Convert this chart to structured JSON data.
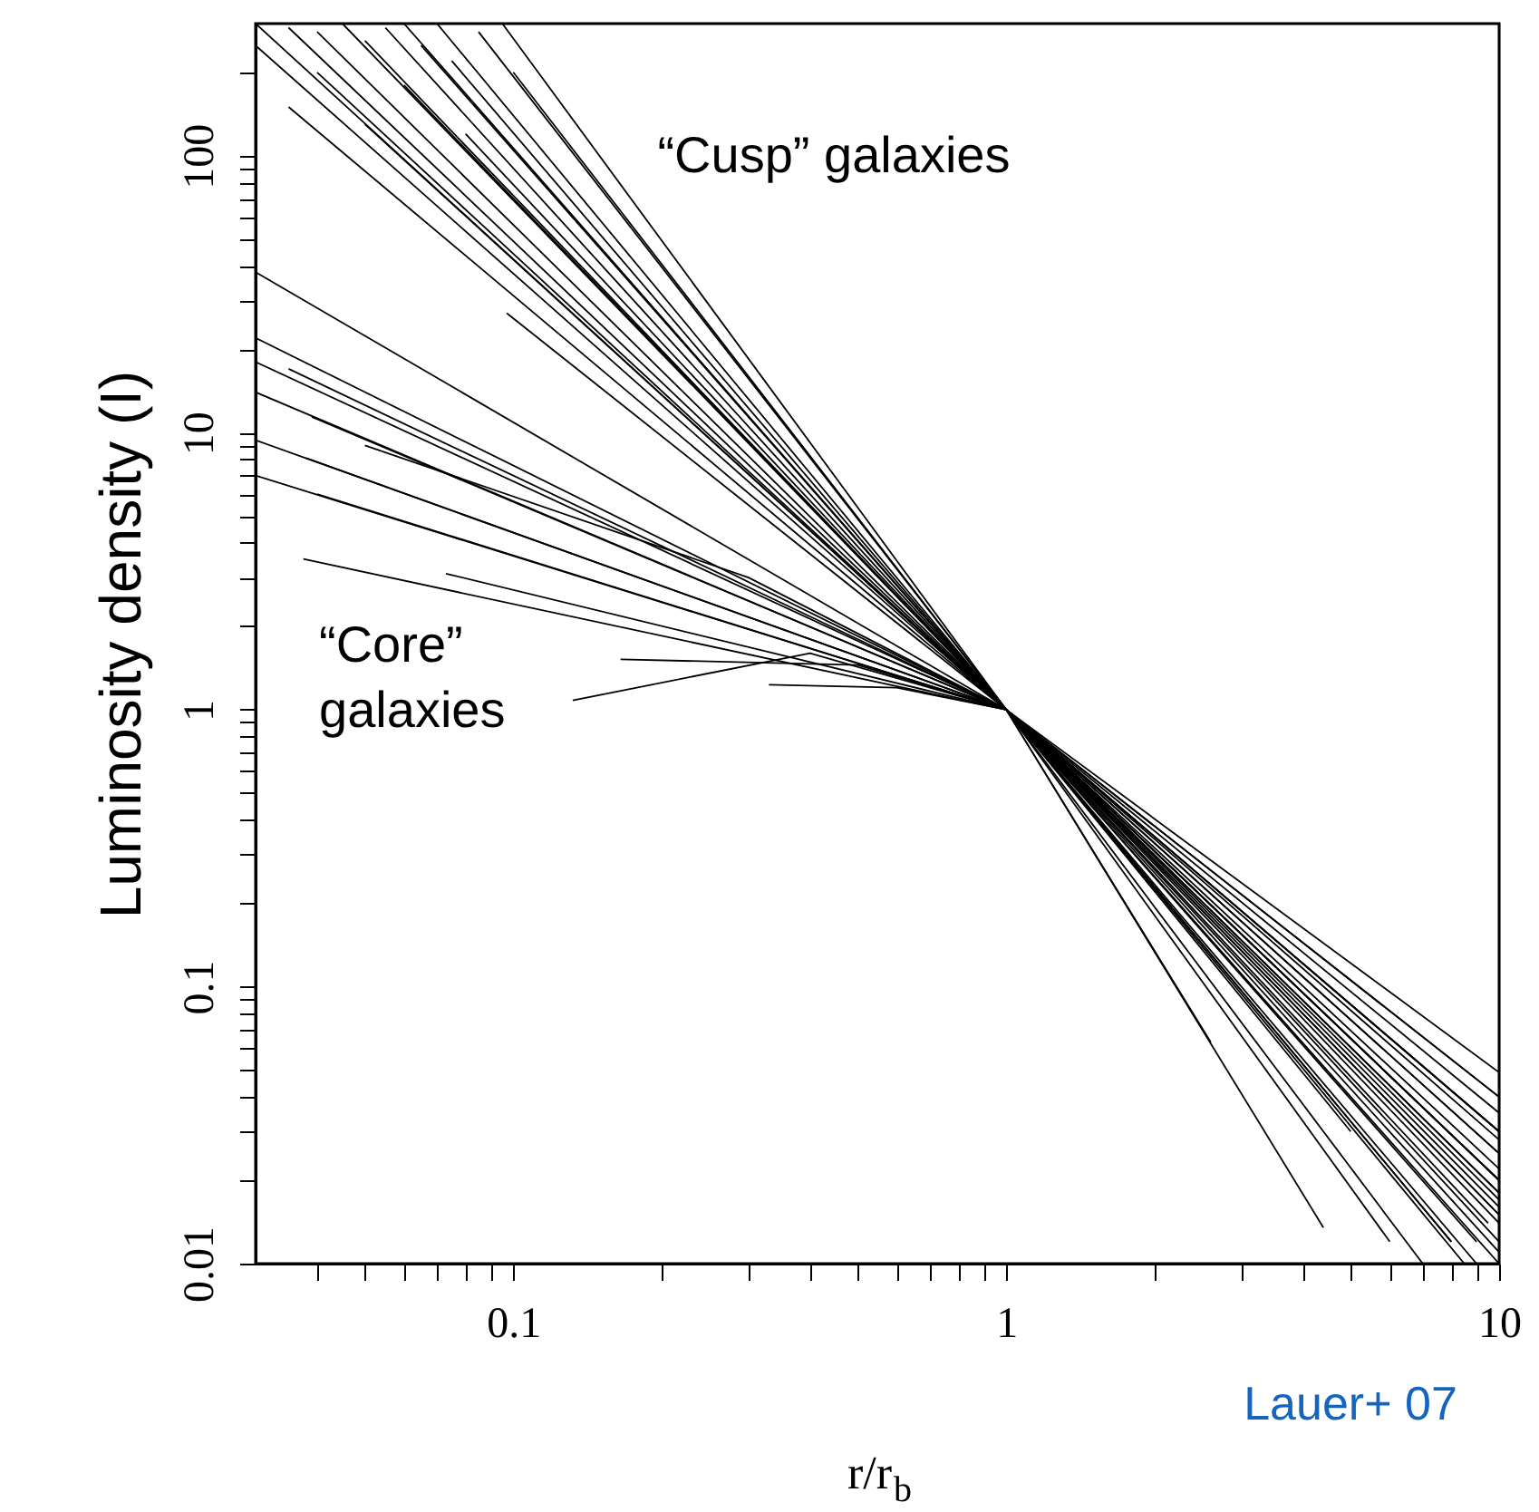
{
  "chart_data": {
    "type": "line",
    "xlabel": "r/r$_{b}$",
    "ylabel": "Luminosity density (I)",
    "log": "xy",
    "grid": false,
    "marker": "none",
    "line_style": "solid",
    "xlim": [
      0.03,
      10
    ],
    "ylim": [
      0.01,
      300
    ],
    "xticks": [
      {
        "value": 0.04,
        "label": null
      },
      {
        "value": 0.05,
        "label": null
      },
      {
        "value": 0.06,
        "label": null
      },
      {
        "value": 0.07,
        "label": null
      },
      {
        "value": 0.08,
        "label": null
      },
      {
        "value": 0.09,
        "label": null
      },
      0.1,
      {
        "value": 0.2,
        "label": null
      },
      {
        "value": 0.3,
        "label": null
      },
      {
        "value": 0.4,
        "label": null
      },
      {
        "value": 0.5,
        "label": null
      },
      {
        "value": 0.6,
        "label": null
      },
      {
        "value": 0.7,
        "label": null
      },
      {
        "value": 0.8,
        "label": null
      },
      {
        "value": 0.9,
        "label": null
      },
      1,
      {
        "value": 2,
        "label": null
      },
      {
        "value": 3,
        "label": null
      },
      {
        "value": 4,
        "label": null
      },
      {
        "value": 5,
        "label": null
      },
      {
        "value": 6,
        "label": null
      },
      {
        "value": 7,
        "label": null
      },
      {
        "value": 8,
        "label": null
      },
      {
        "value": 9,
        "label": null
      },
      10
    ],
    "yticks": [
      0.01,
      {
        "value": 0.02,
        "label": null
      },
      {
        "value": 0.03,
        "label": null
      },
      {
        "value": 0.04,
        "label": null
      },
      {
        "value": 0.05,
        "label": null
      },
      {
        "value": 0.06,
        "label": null
      },
      {
        "value": 0.07,
        "label": null
      },
      {
        "value": 0.08,
        "label": null
      },
      {
        "value": 0.09,
        "label": null
      },
      0.1,
      {
        "value": 0.2,
        "label": null
      },
      {
        "value": 0.3,
        "label": null
      },
      {
        "value": 0.4,
        "label": null
      },
      {
        "value": 0.5,
        "label": null
      },
      {
        "value": 0.6,
        "label": null
      },
      {
        "value": 0.7,
        "label": null
      },
      {
        "value": 0.8,
        "label": null
      },
      {
        "value": 0.9,
        "label": null
      },
      1,
      {
        "value": 2,
        "label": null
      },
      {
        "value": 3,
        "label": null
      },
      {
        "value": 4,
        "label": null
      },
      {
        "value": 5,
        "label": null
      },
      {
        "value": 6,
        "label": null
      },
      {
        "value": 7,
        "label": null
      },
      {
        "value": 8,
        "label": null
      },
      {
        "value": 9,
        "label": null
      },
      10,
      {
        "value": 20,
        "label": null
      },
      {
        "value": 30,
        "label": null
      },
      {
        "value": 40,
        "label": null
      },
      {
        "value": 50,
        "label": null
      },
      {
        "value": 60,
        "label": null
      },
      {
        "value": 70,
        "label": null
      },
      {
        "value": 80,
        "label": null
      },
      {
        "value": 90,
        "label": null
      },
      100,
      {
        "value": 200,
        "label": null
      }
    ],
    "annotations": [
      "“Cusp” galaxies",
      "“Core”\ngalaxies",
      "Lauer+ 07"
    ],
    "series": [
      {
        "color": "#000000",
        "x": [
          0.03,
          1,
          10
        ],
        "values": [
          300,
          1,
          0.012
        ]
      },
      {
        "color": "#000000",
        "x": [
          0.035,
          1,
          8.5
        ],
        "values": [
          290,
          1,
          0.01
        ]
      },
      {
        "color": "#000000",
        "x": [
          0.04,
          1,
          10
        ],
        "values": [
          280,
          1,
          0.02
        ]
      },
      {
        "color": "#000000",
        "x": [
          0.045,
          1,
          10
        ],
        "values": [
          300,
          1,
          0.015
        ]
      },
      {
        "color": "#000000",
        "x": [
          0.05,
          1,
          7
        ],
        "values": [
          260,
          1,
          0.01
        ]
      },
      {
        "color": "#000000",
        "x": [
          0.055,
          1,
          10
        ],
        "values": [
          290,
          1,
          0.025
        ]
      },
      {
        "color": "#000000",
        "x": [
          0.06,
          1,
          9
        ],
        "values": [
          300,
          1,
          0.01
        ]
      },
      {
        "color": "#000000",
        "x": [
          0.065,
          1,
          10
        ],
        "values": [
          250,
          1,
          0.018
        ]
      },
      {
        "color": "#000000",
        "x": [
          0.07,
          1,
          6
        ],
        "values": [
          300,
          1,
          0.012
        ]
      },
      {
        "color": "#000000",
        "x": [
          0.075,
          1,
          10
        ],
        "values": [
          220,
          1,
          0.03
        ]
      },
      {
        "color": "#000000",
        "x": [
          0.085,
          1,
          5
        ],
        "values": [
          280,
          1,
          0.03
        ]
      },
      {
        "color": "#000000",
        "x": [
          0.095,
          1,
          10
        ],
        "values": [
          300,
          1,
          0.011
        ]
      },
      {
        "color": "#000000",
        "x": [
          0.035,
          1,
          10
        ],
        "values": [
          150,
          1,
          0.02
        ]
      },
      {
        "color": "#000000",
        "x": [
          0.05,
          1,
          10
        ],
        "values": [
          130,
          1,
          0.04
        ]
      },
      {
        "color": "#000000",
        "x": [
          0.08,
          1,
          9.5
        ],
        "values": [
          120,
          1,
          0.014
        ]
      },
      {
        "color": "#000000",
        "x": [
          0.1,
          1,
          8
        ],
        "values": [
          200,
          1,
          0.012
        ]
      },
      {
        "color": "#000000",
        "x": [
          0.097,
          1,
          4.4
        ],
        "values": [
          27,
          1,
          0.0135
        ]
      },
      {
        "color": "#000000",
        "x": [
          0.04,
          1,
          2.6
        ],
        "values": [
          200,
          1,
          0.063
        ]
      },
      {
        "color": "#000000",
        "x": [
          0.06,
          1,
          10
        ],
        "values": [
          180,
          1,
          0.016
        ]
      },
      {
        "color": "#000000",
        "x": [
          0.03,
          1,
          10
        ],
        "values": [
          250,
          1,
          0.01
        ]
      },
      {
        "color": "#000000",
        "x": [
          0.03,
          1,
          10
        ],
        "values": [
          38,
          1,
          0.049
        ]
      },
      {
        "color": "#000000",
        "x": [
          0.03,
          1,
          10
        ],
        "values": [
          22,
          1,
          0.025
        ]
      },
      {
        "color": "#000000",
        "x": [
          0.03,
          1,
          10
        ],
        "values": [
          18,
          1,
          0.02
        ]
      },
      {
        "color": "#000000",
        "x": [
          0.035,
          1,
          10
        ],
        "values": [
          17,
          1,
          0.03
        ]
      },
      {
        "color": "#000000",
        "x": [
          0.03,
          1,
          10
        ],
        "values": [
          14,
          1,
          0.017
        ]
      },
      {
        "color": "#000000",
        "x": [
          0.03,
          1,
          10
        ],
        "values": [
          9.4,
          1,
          0.022
        ]
      },
      {
        "color": "#000000",
        "x": [
          0.03,
          1,
          9
        ],
        "values": [
          7,
          1,
          0.012
        ]
      },
      {
        "color": "#000000",
        "x": [
          0.038,
          1,
          10
        ],
        "values": [
          8.1,
          1,
          0.035
        ]
      },
      {
        "color": "#000000",
        "x": [
          0.039,
          1,
          10
        ],
        "values": [
          11.4,
          1,
          0.028
        ]
      },
      {
        "color": "#000000",
        "x": [
          0.0375,
          1,
          10
        ],
        "values": [
          3.5,
          1,
          0.04
        ]
      },
      {
        "color": "#000000",
        "x": [
          0.073,
          1,
          10
        ],
        "values": [
          3.1,
          1,
          0.018
        ]
      },
      {
        "color": "#000000",
        "x": [
          0.165,
          0.5,
          1,
          10
        ],
        "values": [
          1.52,
          1.45,
          1,
          0.02
        ]
      },
      {
        "color": "#000000",
        "x": [
          0.132,
          0.4,
          1,
          8
        ],
        "values": [
          1.08,
          1.6,
          1,
          0.012
        ]
      },
      {
        "color": "#000000",
        "x": [
          0.33,
          0.6,
          1,
          10
        ],
        "values": [
          1.23,
          1.2,
          1,
          0.015
        ]
      },
      {
        "color": "#000000",
        "x": [
          0.05,
          0.3,
          1,
          10
        ],
        "values": [
          9,
          3,
          1,
          0.03
        ]
      },
      {
        "color": "#000000",
        "x": [
          0.04,
          1,
          10
        ],
        "values": [
          6,
          1,
          0.014
        ]
      }
    ]
  }
}
